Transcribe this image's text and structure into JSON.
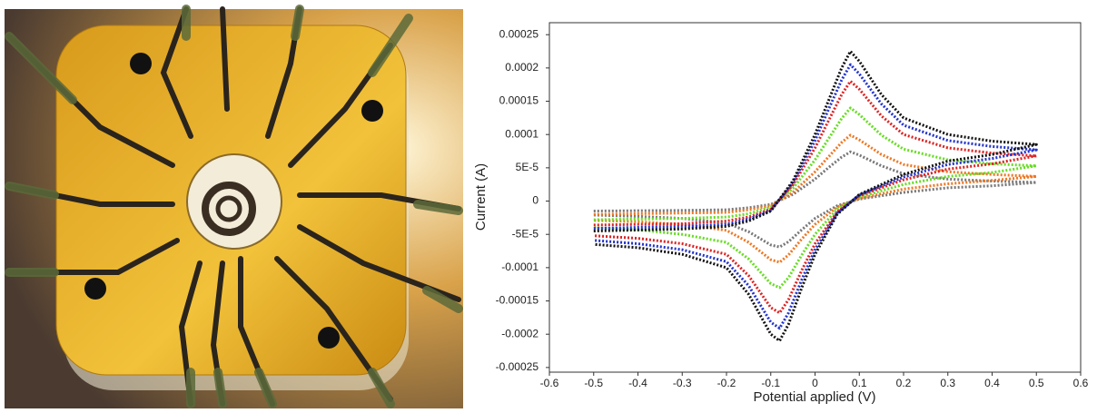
{
  "chart_data": {
    "type": "line",
    "ylabel": "Current (A)",
    "xlabel": "Potential applied (V)",
    "x": [
      -0.5,
      -0.3,
      -0.2,
      -0.15,
      -0.1,
      -0.05,
      0,
      0.03,
      0.06,
      0.08,
      0.1,
      0.15,
      0.2,
      0.3,
      0.4,
      0.5,
      0.5,
      0.4,
      0.3,
      0.2,
      0.1,
      0.05,
      0,
      -0.03,
      -0.06,
      -0.08,
      -0.1,
      -0.15,
      -0.2,
      -0.3,
      -0.4,
      -0.5
    ],
    "series": [
      {
        "color": "#111111",
        "values": [
          -4.5e-05,
          -4.2e-05,
          -3.8e-05,
          -3e-05,
          -1.5e-05,
          3e-05,
          0.0001,
          0.00015,
          0.0002,
          0.000225,
          0.00021,
          0.00016,
          0.000125,
          0.0001,
          9e-05,
          8.5e-05,
          8.5e-05,
          7e-05,
          6e-05,
          4e-05,
          1e-05,
          -2e-05,
          -8e-05,
          -0.00013,
          -0.000185,
          -0.00021,
          -0.0002,
          -0.00014,
          -0.0001,
          -8e-05,
          -7e-05,
          -6.5e-05
        ]
      },
      {
        "color": "#2233cc",
        "values": [
          -4.1e-05,
          -3.8e-05,
          -3.5e-05,
          -2.7e-05,
          -1.4e-05,
          2.7e-05,
          9.1e-05,
          0.000137,
          0.000182,
          0.000205,
          0.000191,
          0.000146,
          0.000114,
          9.1e-05,
          8.2e-05,
          7.7e-05,
          7.7e-05,
          6.4e-05,
          5.5e-05,
          3.6e-05,
          9e-06,
          -1.8e-05,
          -7.3e-05,
          -0.000118,
          -0.000168,
          -0.000191,
          -0.000182,
          -0.000127,
          -9.1e-05,
          -7.3e-05,
          -6.4e-05,
          -5.9e-05
        ]
      },
      {
        "color": "#dd2222",
        "values": [
          -3.6e-05,
          -3.4e-05,
          -3e-05,
          -2.4e-05,
          -1.2e-05,
          2.4e-05,
          8e-05,
          0.00012,
          0.00016,
          0.00018,
          0.000168,
          0.000128,
          0.0001,
          8e-05,
          7.2e-05,
          6.8e-05,
          6.8e-05,
          5.6e-05,
          4.8e-05,
          3.2e-05,
          8e-06,
          -1.6e-05,
          -6.4e-05,
          -0.000104,
          -0.000148,
          -0.000168,
          -0.00016,
          -0.000112,
          -8e-05,
          -6.4e-05,
          -5.6e-05,
          -5.2e-05
        ]
      },
      {
        "color": "#66dd22",
        "values": [
          -2.8e-05,
          -2.6e-05,
          -2.4e-05,
          -1.9e-05,
          -9e-06,
          1.9e-05,
          6.2e-05,
          9.3e-05,
          0.000124,
          0.00014,
          0.00013,
          9.9e-05,
          7.8e-05,
          6.2e-05,
          5.6e-05,
          5.3e-05,
          5.3e-05,
          4.3e-05,
          3.7e-05,
          2.5e-05,
          6e-06,
          -1.2e-05,
          -5e-05,
          -8.1e-05,
          -0.000115,
          -0.00013,
          -0.000124,
          -8.7e-05,
          -6.2e-05,
          -5e-05,
          -4.3e-05,
          -4e-05
        ]
      },
      {
        "color": "#ee7722",
        "values": [
          -2e-05,
          -1.8e-05,
          -1.7e-05,
          -1.3e-05,
          -7e-06,
          1.3e-05,
          4.4e-05,
          6.6e-05,
          8.8e-05,
          9.9e-05,
          9.2e-05,
          7e-05,
          5.5e-05,
          4.4e-05,
          4e-05,
          3.7e-05,
          3.7e-05,
          3.1e-05,
          2.6e-05,
          1.8e-05,
          4e-06,
          -9e-06,
          -3.5e-05,
          -5.7e-05,
          -8.1e-05,
          -9.2e-05,
          -8.8e-05,
          -6.2e-05,
          -4.4e-05,
          -3.5e-05,
          -3.1e-05,
          -2.9e-05
        ]
      },
      {
        "color": "#777777",
        "values": [
          -1.5e-05,
          -1.4e-05,
          -1.3e-05,
          -1e-05,
          -5e-06,
          1e-05,
          3.3e-05,
          5e-05,
          6.6e-05,
          7.4e-05,
          6.9e-05,
          5.3e-05,
          4.1e-05,
          3.3e-05,
          3e-05,
          2.8e-05,
          2.8e-05,
          2.3e-05,
          2e-05,
          1.3e-05,
          3e-06,
          -7e-06,
          -2.6e-05,
          -4.3e-05,
          -6.1e-05,
          -6.9e-05,
          -6.6e-05,
          -4.6e-05,
          -3.3e-05,
          -2.6e-05,
          -2.3e-05,
          -2.1e-05
        ]
      }
    ],
    "xlim": [
      -0.6,
      0.6
    ],
    "xticks": [
      -0.6,
      -0.5,
      -0.4,
      -0.3,
      -0.2,
      -0.1,
      0,
      0.1,
      0.2,
      0.3,
      0.4,
      0.5,
      0.6
    ],
    "ylim": [
      -0.000257,
      0.000268
    ],
    "yticks": [
      0.00025,
      0.0002,
      0.00015,
      0.0001,
      {
        "value": 5e-05,
        "label": "5E-5"
      },
      0,
      {
        "value": -5e-05,
        "label": "-5E-5"
      },
      -0.0001,
      -0.00015,
      -0.0002,
      -0.00025
    ],
    "grid": false
  }
}
